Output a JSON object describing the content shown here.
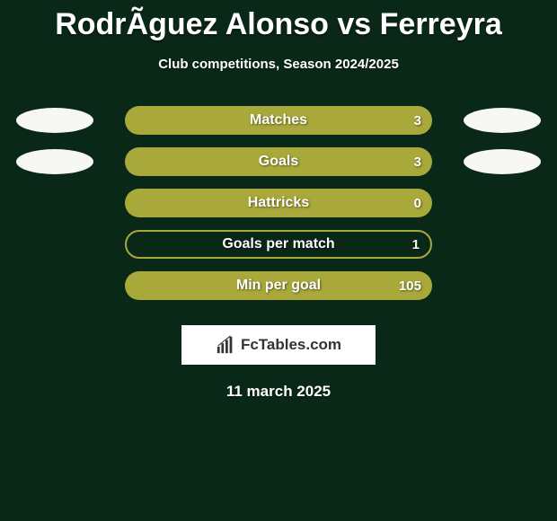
{
  "title": "RodrÃ­guez Alonso vs Ferreyra",
  "subtitle": "Club competitions, Season 2024/2025",
  "background_color": "#0a2818",
  "left_pill_color": "#f7f7f3",
  "right_pill_color": "#f7f7f3",
  "track_outline_color": "#a9a83a",
  "bar_fill_color": "#a9a83a",
  "bar_text_color": "#ffffff",
  "stats": [
    {
      "label": "Matches",
      "value_right": "3",
      "has_left_pill": true,
      "has_right_pill": true,
      "fill_side": "left",
      "fill_pct": 100,
      "outline": false
    },
    {
      "label": "Goals",
      "value_right": "3",
      "has_left_pill": true,
      "has_right_pill": true,
      "fill_side": "left",
      "fill_pct": 100,
      "outline": false
    },
    {
      "label": "Hattricks",
      "value_right": "0",
      "has_left_pill": false,
      "has_right_pill": false,
      "fill_side": "left",
      "fill_pct": 100,
      "outline": false
    },
    {
      "label": "Goals per match",
      "value_right": "1",
      "has_left_pill": false,
      "has_right_pill": false,
      "fill_side": "none",
      "fill_pct": 0,
      "outline": true
    },
    {
      "label": "Min per goal",
      "value_right": "105",
      "has_left_pill": false,
      "has_right_pill": false,
      "fill_side": "left",
      "fill_pct": 100,
      "outline": false
    }
  ],
  "brand": "FcTables.com",
  "brand_text_color": "#333333",
  "brand_bg": "#ffffff",
  "date": "11 march 2025"
}
